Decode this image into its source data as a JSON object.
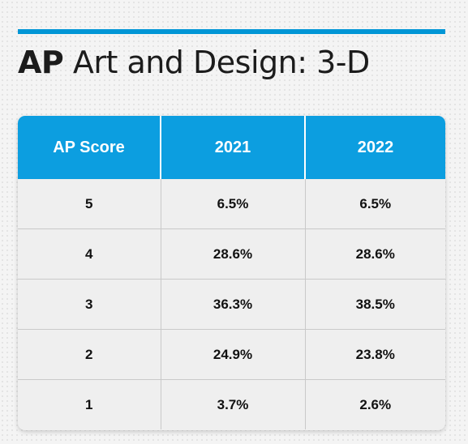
{
  "title": {
    "bold_part": "AP",
    "rest": " Art and Design: 3-D"
  },
  "colors": {
    "accent": "#0096d6",
    "header_bg": "#0c9ee0",
    "row_bg": "#efefef",
    "text": "#1c1c1c"
  },
  "chart_data": {
    "type": "table",
    "title": "AP Art and Design: 3-D",
    "columns": [
      "AP Score",
      "2021",
      "2022"
    ],
    "rows": [
      [
        "5",
        "6.5%",
        "6.5%"
      ],
      [
        "4",
        "28.6%",
        "28.6%"
      ],
      [
        "3",
        "36.3%",
        "38.5%"
      ],
      [
        "2",
        "24.9%",
        "23.8%"
      ],
      [
        "1",
        "3.7%",
        "2.6%"
      ]
    ]
  }
}
